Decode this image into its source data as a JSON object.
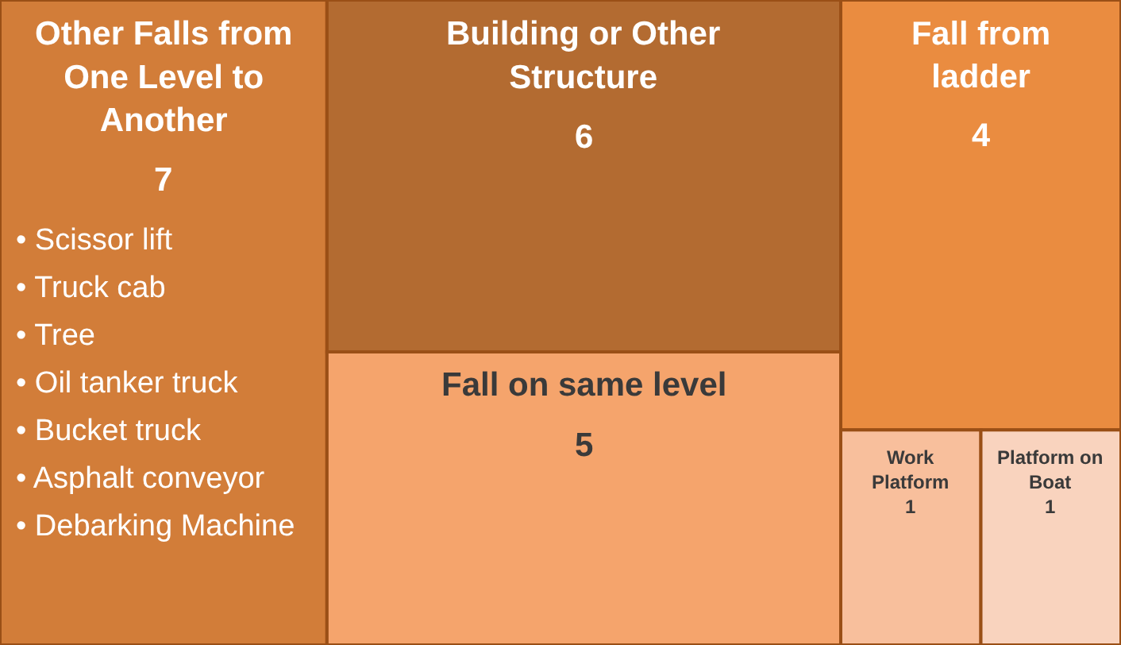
{
  "chart_data": {
    "type": "other",
    "categories": [
      "Other Falls from One Level to Another",
      "Building or Other Structure",
      "Fall on same level",
      "Fall from ladder",
      "Work Platform",
      "Platform on Boat"
    ],
    "values": [
      7,
      6,
      5,
      4,
      1,
      1
    ],
    "colors": [
      "#d27d39",
      "#b36b31",
      "#f5a46c",
      "#ea8c40",
      "#f8bf9c",
      "#f9d3be"
    ],
    "data_labels": true,
    "annotations": [
      "• Scissor lift",
      "• Truck cab",
      "• Tree",
      "• Oil tanker truck",
      "• Bucket truck",
      "• Asphalt conveyor",
      "• Debarking Machine"
    ]
  }
}
